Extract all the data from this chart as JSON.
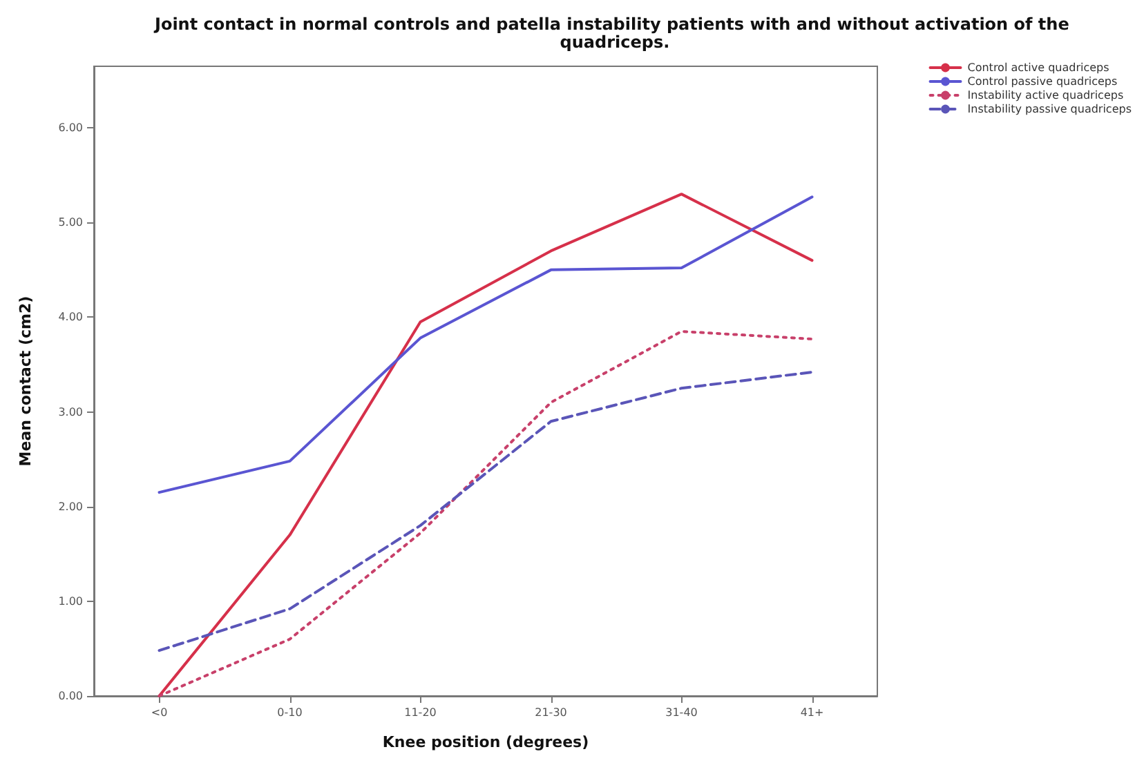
{
  "chart_data": {
    "type": "line",
    "title": "Joint contact in normal controls and patella instability patients with and without activation of the quadriceps.",
    "xlabel": "Knee position (degrees)",
    "ylabel": "Mean contact (cm2)",
    "categories": [
      "<0",
      "0-10",
      "11-20",
      "21-30",
      "31-40",
      "41+"
    ],
    "series": [
      {
        "name": "Control active quadriceps",
        "color": "#d6304a",
        "line_style": "solid",
        "values": [
          0.0,
          1.7,
          3.95,
          4.7,
          5.3,
          4.6
        ]
      },
      {
        "name": "Control passive quadriceps",
        "color": "#5a55d2",
        "line_style": "solid",
        "values": [
          2.15,
          2.48,
          3.78,
          4.5,
          4.52,
          5.27
        ]
      },
      {
        "name": "Instability active quadriceps",
        "color": "#c8406a",
        "line_style": "dotted",
        "values": [
          0.0,
          0.6,
          1.72,
          3.1,
          3.85,
          3.77
        ]
      },
      {
        "name": "Instability passive quadriceps",
        "color": "#5a55b8",
        "line_style": "dashed",
        "values": [
          0.48,
          0.92,
          1.8,
          2.9,
          3.25,
          3.42
        ]
      }
    ],
    "ylim": [
      0,
      6.65
    ],
    "yticks": [
      {
        "value": 0,
        "label": "0.00"
      },
      {
        "value": 1,
        "label": "1.00"
      },
      {
        "value": 2,
        "label": "2.00"
      },
      {
        "value": 3,
        "label": "3.00"
      },
      {
        "value": 4,
        "label": "4.00"
      },
      {
        "value": 5,
        "label": "5.00"
      },
      {
        "value": 6,
        "label": "6.00"
      }
    ],
    "grid": false,
    "legend": "top right",
    "marker": "none"
  }
}
